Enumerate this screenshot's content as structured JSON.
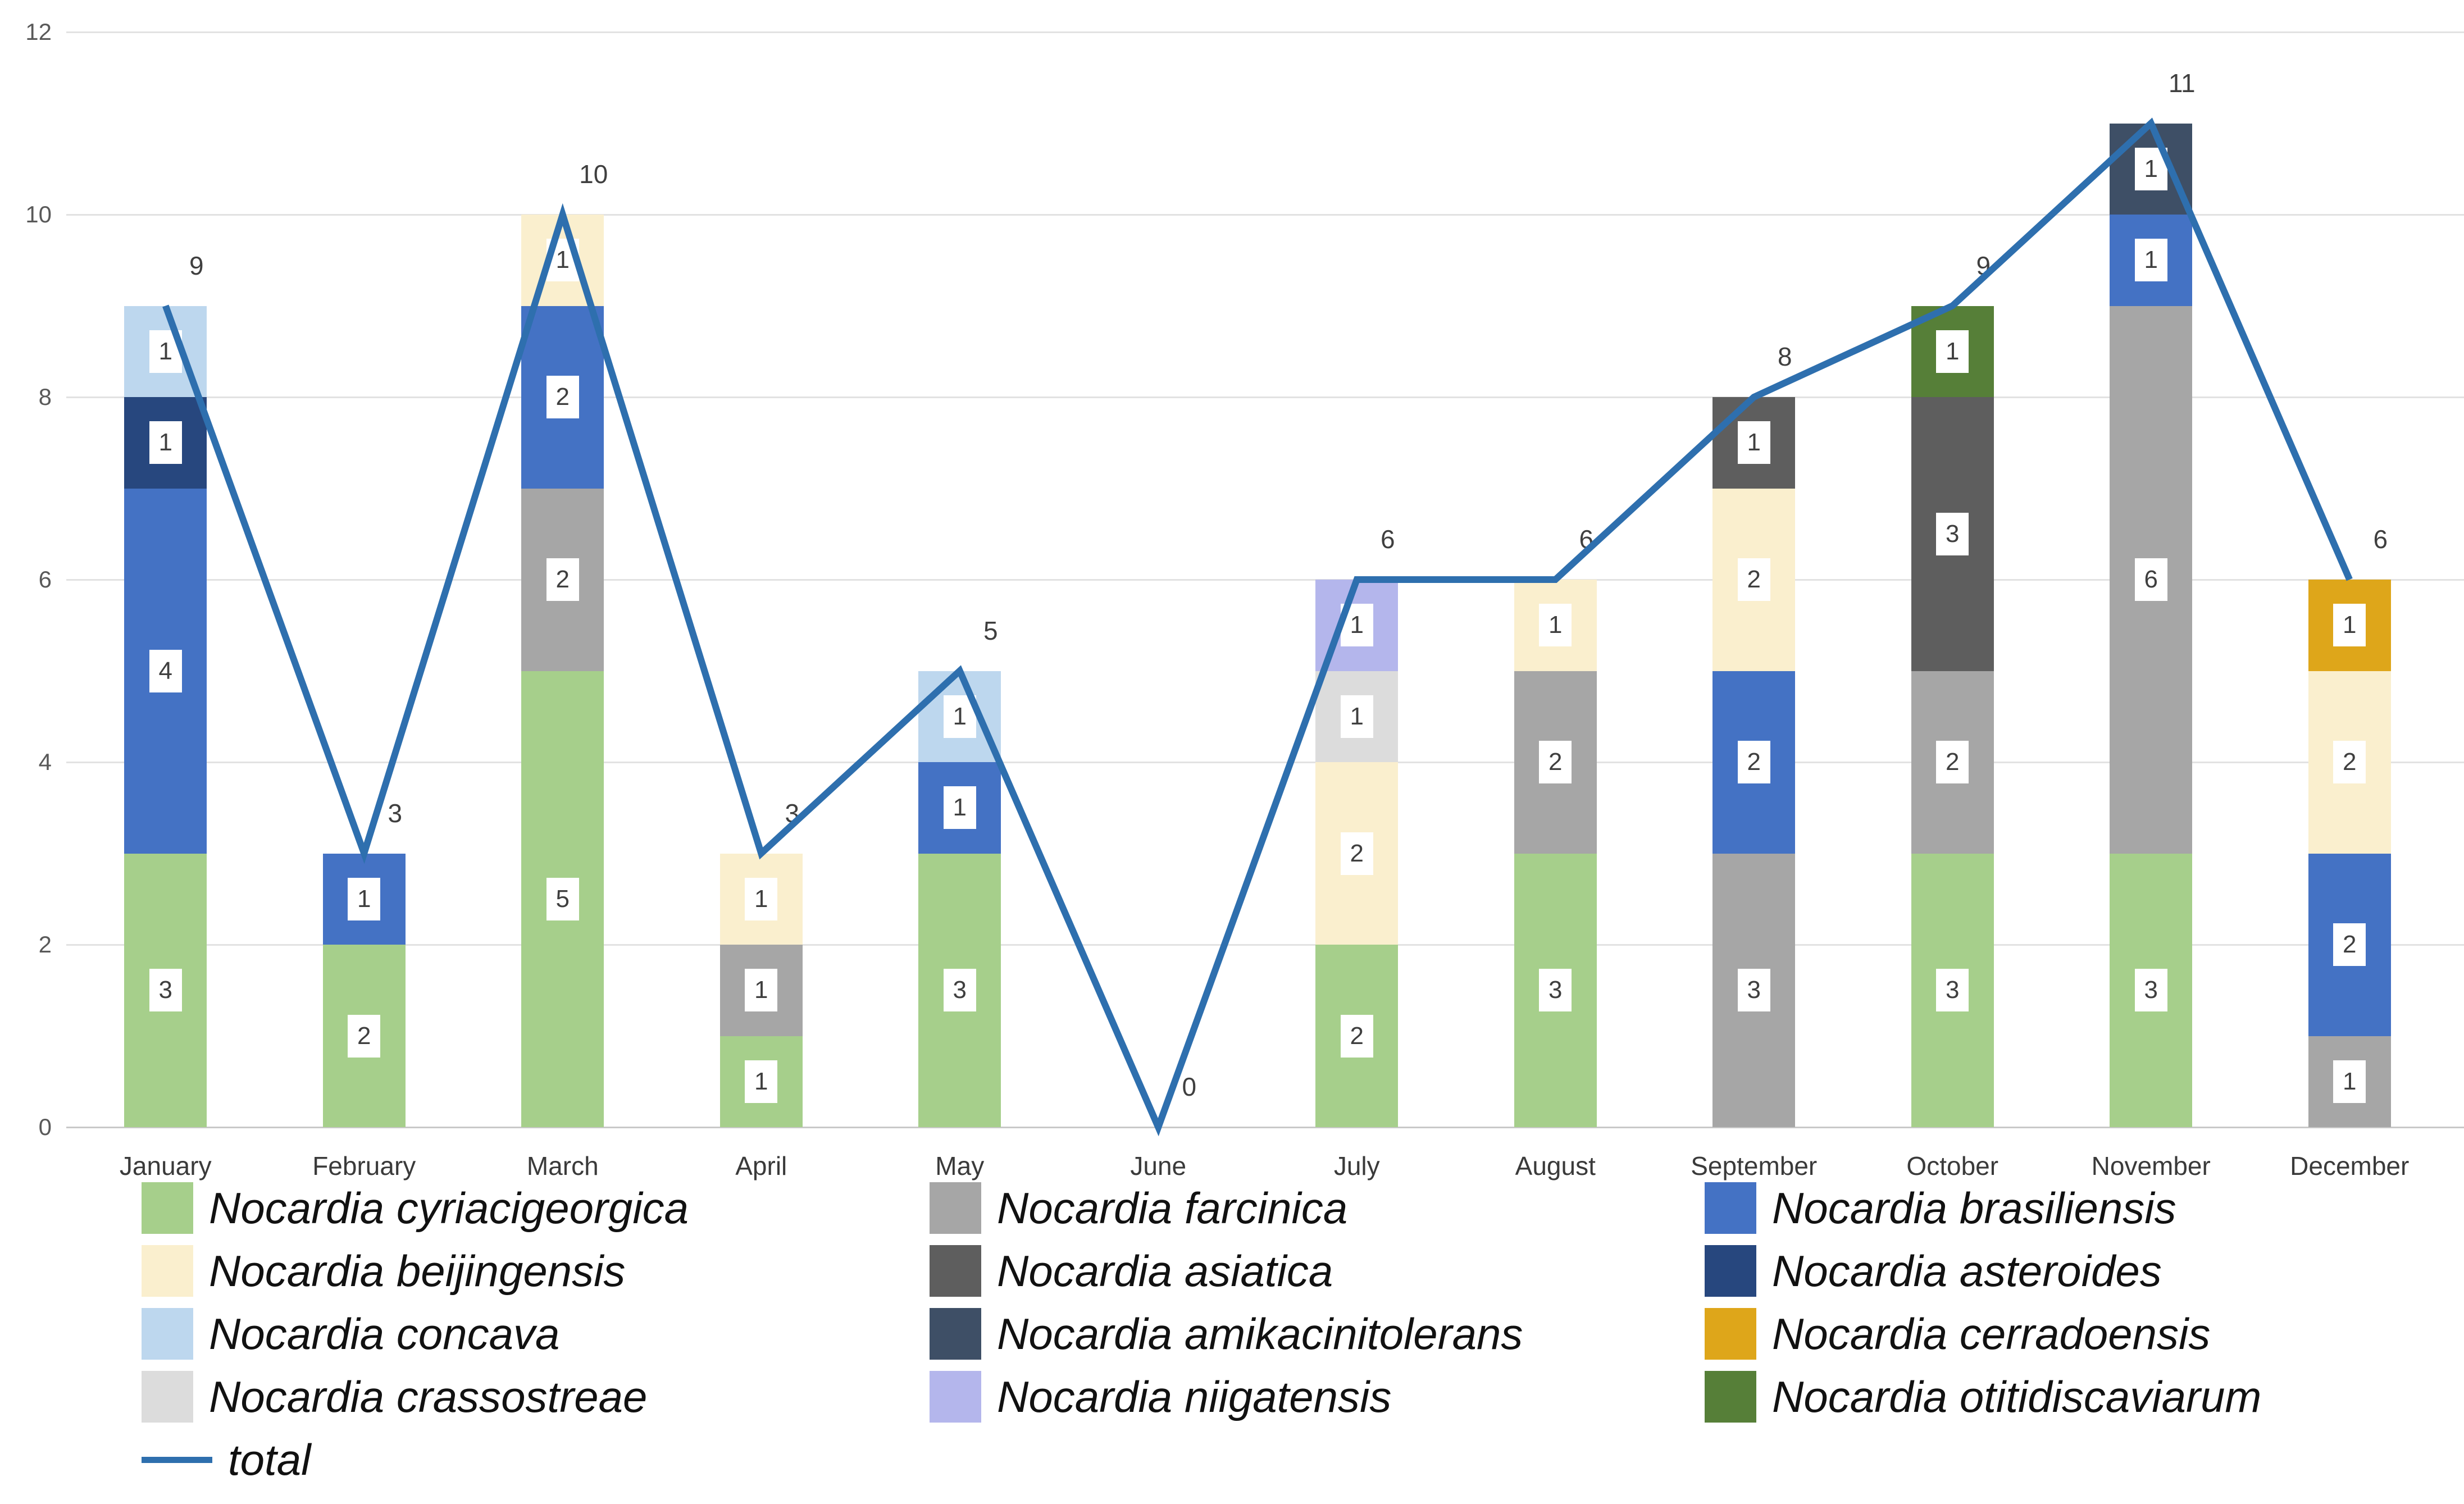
{
  "chart_data": {
    "type": "bar",
    "subtype": "stacked-column-with-total-line",
    "title": "",
    "xlabel": "",
    "ylabel": "",
    "categories": [
      "January",
      "February",
      "March",
      "April",
      "May",
      "June",
      "July",
      "August",
      "September",
      "October",
      "November",
      "December"
    ],
    "y_axis": {
      "min": 0,
      "max": 12,
      "step": 2,
      "ticks": [
        0,
        2,
        4,
        6,
        8,
        10,
        12
      ]
    },
    "grid": true,
    "species": [
      {
        "name": "Nocardia cyriacigeorgica",
        "color": "#A6CF8B"
      },
      {
        "name": "Nocardia farcinica",
        "color": "#A6A6A6"
      },
      {
        "name": "Nocardia brasiliensis",
        "color": "#4472C4"
      },
      {
        "name": "Nocardia beijingensis",
        "color": "#FAEFCE"
      },
      {
        "name": "Nocardia asiatica",
        "color": "#5E5E5E"
      },
      {
        "name": "Nocardia asteroides",
        "color": "#27477E"
      },
      {
        "name": "Nocardia concava",
        "color": "#BDD7EE"
      },
      {
        "name": "Nocardia amikacinitolerans",
        "color": "#3E4F66"
      },
      {
        "name": "Nocardia cerradoensis",
        "color": "#DEA61A"
      },
      {
        "name": "Nocardia crassostreae",
        "color": "#DCDCDC"
      },
      {
        "name": "Nocardia niigatensis",
        "color": "#B4B6EC"
      },
      {
        "name": "Nocardia otitidiscaviarum",
        "color": "#567F38"
      }
    ],
    "months": [
      {
        "label": "January",
        "total": 9,
        "segments": [
          {
            "species": "Nocardia cyriacigeorgica",
            "value": 3
          },
          {
            "species": "Nocardia brasiliensis",
            "value": 4
          },
          {
            "species": "Nocardia asteroides",
            "value": 1
          },
          {
            "species": "Nocardia concava",
            "value": 1
          }
        ]
      },
      {
        "label": "February",
        "total": 3,
        "segments": [
          {
            "species": "Nocardia cyriacigeorgica",
            "value": 2
          },
          {
            "species": "Nocardia brasiliensis",
            "value": 1
          }
        ]
      },
      {
        "label": "March",
        "total": 10,
        "segments": [
          {
            "species": "Nocardia cyriacigeorgica",
            "value": 5
          },
          {
            "species": "Nocardia farcinica",
            "value": 2
          },
          {
            "species": "Nocardia brasiliensis",
            "value": 2
          },
          {
            "species": "Nocardia beijingensis",
            "value": 1
          }
        ]
      },
      {
        "label": "April",
        "total": 3,
        "segments": [
          {
            "species": "Nocardia cyriacigeorgica",
            "value": 1
          },
          {
            "species": "Nocardia farcinica",
            "value": 1
          },
          {
            "species": "Nocardia beijingensis",
            "value": 1
          }
        ]
      },
      {
        "label": "May",
        "total": 5,
        "segments": [
          {
            "species": "Nocardia cyriacigeorgica",
            "value": 3
          },
          {
            "species": "Nocardia brasiliensis",
            "value": 1
          },
          {
            "species": "Nocardia concava",
            "value": 1
          }
        ]
      },
      {
        "label": "June",
        "total": 0,
        "segments": []
      },
      {
        "label": "July",
        "total": 6,
        "segments": [
          {
            "species": "Nocardia cyriacigeorgica",
            "value": 2
          },
          {
            "species": "Nocardia beijingensis",
            "value": 2
          },
          {
            "species": "Nocardia crassostreae",
            "value": 1
          },
          {
            "species": "Nocardia niigatensis",
            "value": 1
          }
        ]
      },
      {
        "label": "August",
        "total": 6,
        "segments": [
          {
            "species": "Nocardia cyriacigeorgica",
            "value": 3
          },
          {
            "species": "Nocardia farcinica",
            "value": 2
          },
          {
            "species": "Nocardia beijingensis",
            "value": 1
          }
        ]
      },
      {
        "label": "September",
        "total": 8,
        "segments": [
          {
            "species": "Nocardia farcinica",
            "value": 3
          },
          {
            "species": "Nocardia brasiliensis",
            "value": 2
          },
          {
            "species": "Nocardia beijingensis",
            "value": 2
          },
          {
            "species": "Nocardia asiatica",
            "value": 1
          }
        ]
      },
      {
        "label": "October",
        "total": 9,
        "segments": [
          {
            "species": "Nocardia cyriacigeorgica",
            "value": 3
          },
          {
            "species": "Nocardia farcinica",
            "value": 2
          },
          {
            "species": "Nocardia asiatica",
            "value": 3
          },
          {
            "species": "Nocardia otitidiscaviarum",
            "value": 1
          }
        ]
      },
      {
        "label": "November",
        "total": 11,
        "segments": [
          {
            "species": "Nocardia cyriacigeorgica",
            "value": 3
          },
          {
            "species": "Nocardia farcinica",
            "value": 6
          },
          {
            "species": "Nocardia brasiliensis",
            "value": 1
          },
          {
            "species": "Nocardia amikacinitolerans",
            "value": 1
          }
        ]
      },
      {
        "label": "December",
        "total": 6,
        "segments": [
          {
            "species": "Nocardia farcinica",
            "value": 1
          },
          {
            "species": "Nocardia brasiliensis",
            "value": 2
          },
          {
            "species": "Nocardia beijingensis",
            "value": 2
          },
          {
            "species": "Nocardia cerradoensis",
            "value": 1
          }
        ]
      }
    ],
    "line": {
      "name": "total",
      "color": "#2E6FAE",
      "values": [
        9,
        3,
        10,
        3,
        5,
        0,
        6,
        6,
        8,
        9,
        11,
        6
      ]
    },
    "legend": {
      "position": "bottom",
      "columns": [
        [
          "Nocardia cyriacigeorgica",
          "Nocardia beijingensis",
          "Nocardia concava",
          "Nocardia crassostreae",
          "total"
        ],
        [
          "Nocardia farcinica",
          "Nocardia asiatica",
          "Nocardia amikacinitolerans",
          "Nocardia niigatensis"
        ],
        [
          "Nocardia brasiliensis",
          "Nocardia asteroides",
          "Nocardia cerradoensis",
          "Nocardia otitidiscaviarum"
        ]
      ]
    }
  }
}
